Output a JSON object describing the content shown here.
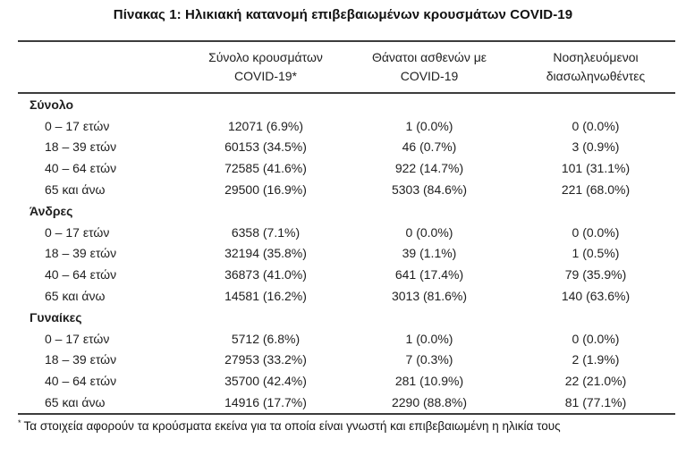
{
  "title": "Πίνακας 1: Ηλικιακή κατανομή επιβεβαιωμένων κρουσμάτων COVID-19",
  "table": {
    "col_headers": [
      {
        "line1": "Σύνολο κρουσμάτων",
        "line2": "COVID-19*"
      },
      {
        "line1": "Θάνατοι ασθενών με",
        "line2": "COVID-19"
      },
      {
        "line1": "Νοσηλευόμενοι",
        "line2": "διασωληνωθέντες"
      }
    ],
    "sections": [
      {
        "label": "Σύνολο",
        "rows": [
          {
            "label": "0 – 17 ετών",
            "cases": "12071 (6.9%)",
            "deaths": "1 (0.0%)",
            "intubated": "0 (0.0%)"
          },
          {
            "label": "18 – 39 ετών",
            "cases": "60153 (34.5%)",
            "deaths": "46 (0.7%)",
            "intubated": "3 (0.9%)"
          },
          {
            "label": "40 – 64 ετών",
            "cases": "72585 (41.6%)",
            "deaths": "922 (14.7%)",
            "intubated": "101 (31.1%)"
          },
          {
            "label": "65 και άνω",
            "cases": "29500 (16.9%)",
            "deaths": "5303 (84.6%)",
            "intubated": "221 (68.0%)"
          }
        ]
      },
      {
        "label": "Άνδρες",
        "rows": [
          {
            "label": "0 – 17 ετών",
            "cases": "6358 (7.1%)",
            "deaths": "0 (0.0%)",
            "intubated": "0 (0.0%)"
          },
          {
            "label": "18 – 39 ετών",
            "cases": "32194 (35.8%)",
            "deaths": "39 (1.1%)",
            "intubated": "1 (0.5%)"
          },
          {
            "label": "40 – 64 ετών",
            "cases": "36873 (41.0%)",
            "deaths": "641 (17.4%)",
            "intubated": "79 (35.9%)"
          },
          {
            "label": "65 και άνω",
            "cases": "14581 (16.2%)",
            "deaths": "3013 (81.6%)",
            "intubated": "140 (63.6%)"
          }
        ]
      },
      {
        "label": "Γυναίκες",
        "rows": [
          {
            "label": "0 – 17 ετών",
            "cases": "5712 (6.8%)",
            "deaths": "1 (0.0%)",
            "intubated": "0 (0.0%)"
          },
          {
            "label": "18 – 39 ετών",
            "cases": "27953 (33.2%)",
            "deaths": "7 (0.3%)",
            "intubated": "2 (1.9%)"
          },
          {
            "label": "40 – 64 ετών",
            "cases": "35700 (42.4%)",
            "deaths": "281 (10.9%)",
            "intubated": "22 (21.0%)"
          },
          {
            "label": "65 και άνω",
            "cases": "14916 (17.7%)",
            "deaths": "2290 (88.8%)",
            "intubated": "81 (77.1%)"
          }
        ]
      }
    ],
    "footnote_marker": "*",
    "footnote": "Τα στοιχεία αφορούν τα κρούσματα εκείνα για τα οποία είναι γνωστή και επιβεβαιωμένη η ηλικία τους"
  }
}
